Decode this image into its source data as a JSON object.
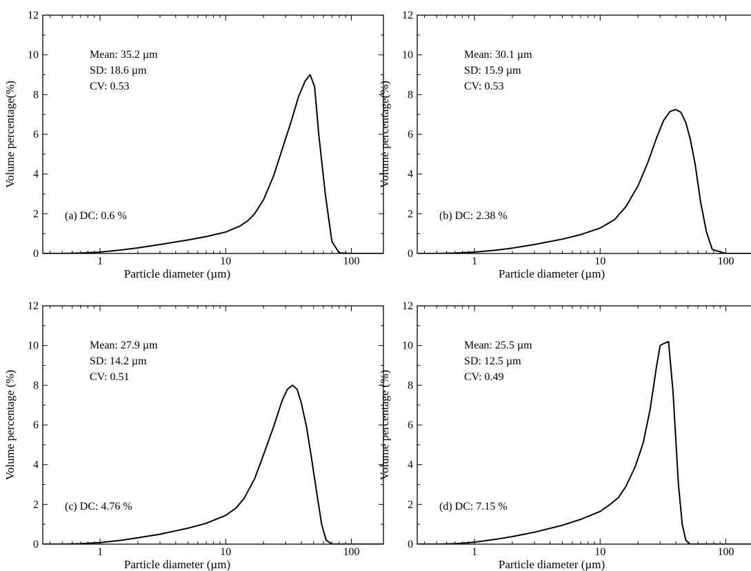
{
  "chart_data": [
    {
      "type": "line",
      "panel": "(a)",
      "xlabel": "Particle diameter (µm)",
      "ylabel": "Volume percentage(%)",
      "xscale": "log",
      "xlim": [
        0.35,
        180
      ],
      "ylim": [
        0,
        12
      ],
      "x_ticks": [
        1,
        10,
        100
      ],
      "x_tick_labels": [
        "1",
        "10",
        "100"
      ],
      "y_ticks": [
        0,
        2,
        4,
        6,
        8,
        10,
        12
      ],
      "y_tick_labels": [
        "0",
        "2",
        "4",
        "6",
        "8",
        "10",
        "12"
      ],
      "grid": false,
      "annotations": [
        "Mean: 35.2 µm",
        "SD: 18.6 µm",
        "CV: 0.53"
      ],
      "dc_label": "(a)  DC: 0.6 %",
      "series": [
        {
          "x": [
            0.35,
            0.5,
            0.7,
            1,
            1.5,
            2,
            3,
            5,
            7,
            10,
            13,
            15,
            17,
            20,
            24,
            28,
            33,
            38,
            43,
            47,
            51,
            55,
            62,
            70,
            80,
            100,
            180
          ],
          "y": [
            0,
            0,
            0.02,
            0.07,
            0.18,
            0.28,
            0.45,
            0.68,
            0.85,
            1.08,
            1.38,
            1.65,
            2.0,
            2.7,
            3.9,
            5.2,
            6.6,
            7.9,
            8.7,
            9.0,
            8.4,
            6.0,
            3.0,
            0.6,
            0.03,
            0,
            0
          ]
        }
      ]
    },
    {
      "type": "line",
      "panel": "(b)",
      "xlabel": "Particle diameter (µm)",
      "ylabel": "Volume percentage(%)",
      "xscale": "log",
      "xlim": [
        0.35,
        180
      ],
      "ylim": [
        0,
        12
      ],
      "x_ticks": [
        1,
        10,
        100
      ],
      "x_tick_labels": [
        "1",
        "10",
        "100"
      ],
      "y_ticks": [
        0,
        2,
        4,
        6,
        8,
        10,
        12
      ],
      "y_tick_labels": [
        "0",
        "2",
        "4",
        "6",
        "8",
        "10",
        "12"
      ],
      "grid": false,
      "annotations": [
        "Mean: 30.1 µm",
        "SD: 15.9 µm",
        "CV: 0.53"
      ],
      "dc_label": "(b)  DC: 2.38 %",
      "series": [
        {
          "x": [
            0.35,
            0.5,
            0.7,
            1,
            1.5,
            2,
            3,
            5,
            7,
            10,
            13,
            16,
            20,
            24,
            28,
            32,
            36,
            40,
            44,
            48,
            52,
            57,
            63,
            70,
            78,
            100,
            180
          ],
          "y": [
            0,
            0,
            0.02,
            0.07,
            0.17,
            0.27,
            0.45,
            0.72,
            0.95,
            1.28,
            1.7,
            2.35,
            3.4,
            4.6,
            5.8,
            6.7,
            7.15,
            7.25,
            7.1,
            6.6,
            5.8,
            4.5,
            2.6,
            1.1,
            0.2,
            0,
            0
          ]
        }
      ]
    },
    {
      "type": "line",
      "panel": "(c)",
      "xlabel": "Particle diameter (µm)",
      "ylabel": "Volume percentage (%)",
      "xscale": "log",
      "xlim": [
        0.35,
        180
      ],
      "ylim": [
        0,
        12
      ],
      "x_ticks": [
        1,
        10,
        100
      ],
      "x_tick_labels": [
        "1",
        "10",
        "100"
      ],
      "y_ticks": [
        0,
        2,
        4,
        6,
        8,
        10,
        12
      ],
      "y_tick_labels": [
        "0",
        "2",
        "4",
        "6",
        "8",
        "10",
        "12"
      ],
      "grid": false,
      "annotations": [
        "Mean: 27.9 µm",
        "SD: 14.2 µm",
        "CV: 0.51"
      ],
      "dc_label": "(c)  DC: 4.76 %",
      "series": [
        {
          "x": [
            0.35,
            0.5,
            0.7,
            1,
            1.5,
            2,
            3,
            5,
            7,
            10,
            12,
            14,
            17,
            20,
            24,
            28,
            31,
            34,
            37,
            40,
            44,
            48,
            53,
            58,
            63,
            70,
            100,
            180
          ],
          "y": [
            0,
            0,
            0.02,
            0.08,
            0.2,
            0.32,
            0.5,
            0.8,
            1.05,
            1.45,
            1.8,
            2.3,
            3.3,
            4.5,
            5.9,
            7.2,
            7.8,
            8.0,
            7.8,
            7.1,
            5.9,
            4.4,
            2.6,
            1.0,
            0.2,
            0,
            0,
            0
          ]
        }
      ]
    },
    {
      "type": "line",
      "panel": "(d)",
      "xlabel": "Particle diameter (µm)",
      "ylabel": "Volume percentage (%)",
      "xscale": "log",
      "xlim": [
        0.35,
        180
      ],
      "ylim": [
        0,
        12
      ],
      "x_ticks": [
        1,
        10,
        100
      ],
      "x_tick_labels": [
        "1",
        "10",
        "100"
      ],
      "y_ticks": [
        0,
        2,
        4,
        6,
        8,
        10,
        12
      ],
      "y_tick_labels": [
        "0",
        "2",
        "4",
        "6",
        "8",
        "10",
        "12"
      ],
      "grid": false,
      "annotations": [
        "Mean: 25.5 µm",
        "SD: 12.5 µm",
        "CV: 0.49"
      ],
      "dc_label": "(d)  DC: 7.15 %",
      "series": [
        {
          "x": [
            0.35,
            0.5,
            0.7,
            1,
            1.5,
            2,
            3,
            5,
            7,
            10,
            12,
            14,
            16,
            19,
            22,
            25,
            28,
            30,
            32,
            35,
            38,
            42,
            45,
            48,
            52,
            100,
            180
          ],
          "y": [
            0,
            0,
            0.02,
            0.1,
            0.25,
            0.38,
            0.6,
            0.95,
            1.25,
            1.65,
            2.0,
            2.35,
            2.9,
            3.9,
            5.1,
            6.8,
            8.9,
            10.0,
            10.1,
            10.2,
            7.7,
            3.0,
            1.0,
            0.2,
            0,
            0,
            0
          ]
        }
      ]
    }
  ]
}
